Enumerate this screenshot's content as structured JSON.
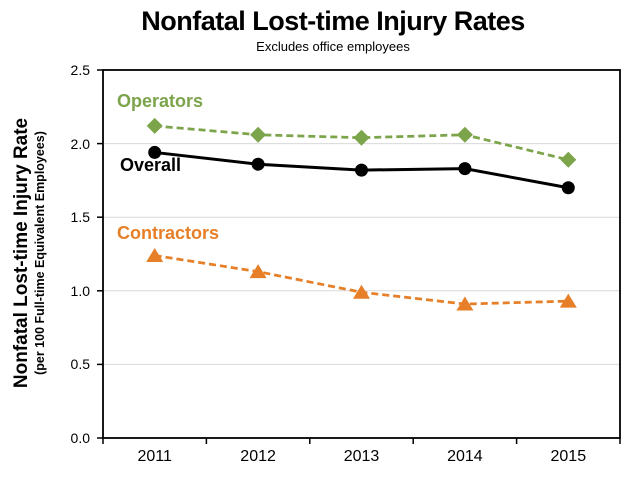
{
  "page": {
    "title": "Nonfatal Lost-time Injury Rates",
    "subtitle": "Excludes office employees"
  },
  "chart_data": {
    "type": "line",
    "title": "Nonfatal Lost-time Injury Rates",
    "subtitle": "Excludes office employees",
    "categories": [
      "2011",
      "2012",
      "2013",
      "2014",
      "2015"
    ],
    "series": [
      {
        "name": "Operators",
        "color": "#7CA44A",
        "marker": "diamond",
        "line_style": "dashed",
        "values": [
          2.12,
          2.06,
          2.04,
          2.06,
          1.89
        ]
      },
      {
        "name": "Overall",
        "color": "#000000",
        "marker": "circle",
        "line_style": "solid",
        "values": [
          1.94,
          1.86,
          1.82,
          1.83,
          1.7
        ]
      },
      {
        "name": "Contractors",
        "color": "#E67F27",
        "marker": "triangle",
        "line_style": "dashed",
        "values": [
          1.24,
          1.13,
          0.99,
          0.91,
          0.93
        ]
      }
    ],
    "xlabel": "",
    "ylabel": "Nonfatal Lost-time Injury Rate",
    "ylabel_sub": "(per 100 Full-time Equivalent Employees)",
    "ylim": [
      0.0,
      2.5
    ],
    "yticks": [
      "0.0",
      "0.5",
      "1.0",
      "1.5",
      "2.0",
      "2.5"
    ],
    "grid": "horizontal",
    "gridline_color": "#d9d9d9",
    "axis_color": "#000000",
    "legend": "inline-series-labels"
  }
}
